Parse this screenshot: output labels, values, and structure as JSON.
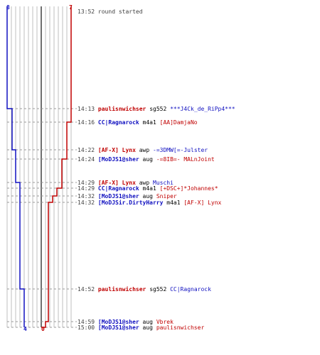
{
  "colors": {
    "red": "#c00000",
    "blue": "#1010c0",
    "grid": "#bfbfbf",
    "dash": "#999999",
    "text": "#404040"
  },
  "scores": {
    "blue_start": "8",
    "red_start": "7",
    "blue_end": "4",
    "red_end": "0"
  },
  "events": [
    {
      "time": "13:52",
      "desc": "round started"
    },
    {
      "time": "14:13",
      "killer": "paulisnwichser",
      "killer_team": "red",
      "weapon": "sg552",
      "victim": "***J4Ck_de_RiPp4***",
      "victim_team": "blue"
    },
    {
      "time": "14:16",
      "killer": "CC|Ragnarock",
      "killer_team": "blue",
      "weapon": "m4a1",
      "victim": "[AA]DamjaNo",
      "victim_team": "red"
    },
    {
      "time": "14:22",
      "killer": "[AF-X] Lynx",
      "killer_team": "red",
      "weapon": "awp",
      "victim": "-=3DMW[=-Julster",
      "victim_team": "blue"
    },
    {
      "time": "14:24",
      "killer": "[MoDJS1@sher",
      "killer_team": "blue",
      "weapon": "aug",
      "victim": "-=8IB=- MALnJoint",
      "victim_team": "red"
    },
    {
      "time": "14:29",
      "killer": "[AF-X] Lynx",
      "killer_team": "red",
      "weapon": "awp",
      "victim": "Muschi",
      "victim_team": "blue"
    },
    {
      "time": "14:29",
      "killer": "CC|Ragnarock",
      "killer_team": "blue",
      "weapon": "m4a1",
      "victim": "[+DSC+]*Johannes*",
      "victim_team": "red"
    },
    {
      "time": "14:32",
      "killer": "[MoDJS1@sher",
      "killer_team": "blue",
      "weapon": "aug",
      "victim": "Sniper",
      "victim_team": "red"
    },
    {
      "time": "14:32",
      "killer": "[MoDJSir.DirtyHarry",
      "killer_team": "blue",
      "weapon": "m4a1",
      "victim": "[AF-X] Lynx",
      "victim_team": "red"
    },
    {
      "time": "14:52",
      "killer": "paulisnwichser",
      "killer_team": "red",
      "weapon": "sg552",
      "victim": "CC|Ragnarock",
      "victim_team": "blue"
    },
    {
      "time": "14:59",
      "killer": "[MoDJS1@sher",
      "killer_team": "blue",
      "weapon": "aug",
      "victim": "Vbrek",
      "victim_team": "red"
    },
    {
      "time": "15:00",
      "killer": "[MoDJS1@sher",
      "killer_team": "blue",
      "weapon": "aug",
      "victim": "paulisnwichser",
      "victim_team": "red"
    }
  ]
}
